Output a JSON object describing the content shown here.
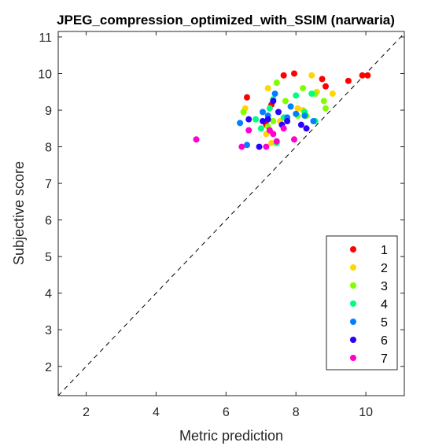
{
  "chart_data": {
    "type": "scatter",
    "title": "JPEG_compression_optimized_with_SSIM (narwaria)",
    "xlabel": "Metric prediction",
    "ylabel": "Subjective score",
    "xlim": [
      1.2,
      11.1
    ],
    "ylim": [
      1.2,
      11.15
    ],
    "xticks": [
      2,
      4,
      6,
      8,
      10
    ],
    "yticks": [
      2,
      3,
      4,
      5,
      6,
      7,
      8,
      9,
      10,
      11
    ],
    "grid": false,
    "legend_position": "bottom-right",
    "reference_line": "dashed diagonal y = x",
    "series": [
      {
        "name": "1",
        "color": "#ff0000",
        "points": [
          [
            6.6,
            9.35
          ],
          [
            7.3,
            9.15
          ],
          [
            7.65,
            9.95
          ],
          [
            7.95,
            10.0
          ],
          [
            8.75,
            9.85
          ],
          [
            8.85,
            9.65
          ],
          [
            9.5,
            9.8
          ],
          [
            9.9,
            9.95
          ],
          [
            10.05,
            9.95
          ],
          [
            7.15,
            8.6
          ]
        ]
      },
      {
        "name": "2",
        "color": "#ffd700",
        "points": [
          [
            6.55,
            9.05
          ],
          [
            7.2,
            9.6
          ],
          [
            7.45,
            9.75
          ],
          [
            8.45,
            9.95
          ],
          [
            8.6,
            9.5
          ],
          [
            9.05,
            9.45
          ],
          [
            7.15,
            8.35
          ],
          [
            7.3,
            8.1
          ],
          [
            8.05,
            9.05
          ],
          [
            8.2,
            9.0
          ],
          [
            7.55,
            8.7
          ]
        ]
      },
      {
        "name": "3",
        "color": "#80ff00",
        "points": [
          [
            6.5,
            8.95
          ],
          [
            7.2,
            8.55
          ],
          [
            7.45,
            9.75
          ],
          [
            7.7,
            9.25
          ],
          [
            8.2,
            9.6
          ],
          [
            8.55,
            9.45
          ],
          [
            8.8,
            9.25
          ],
          [
            8.85,
            9.05
          ],
          [
            7.35,
            8.7
          ],
          [
            8.05,
            8.85
          ],
          [
            8.3,
            8.85
          ]
        ]
      },
      {
        "name": "4",
        "color": "#00ff80",
        "points": [
          [
            6.85,
            8.75
          ],
          [
            7.25,
            9.05
          ],
          [
            7.35,
            9.3
          ],
          [
            7.65,
            8.8
          ],
          [
            8.0,
            9.4
          ],
          [
            8.25,
            8.95
          ],
          [
            8.45,
            9.45
          ],
          [
            8.55,
            8.7
          ],
          [
            7.0,
            8.5
          ],
          [
            7.45,
            8.1
          ]
        ]
      },
      {
        "name": "5",
        "color": "#0080ff",
        "points": [
          [
            6.4,
            8.65
          ],
          [
            6.6,
            8.05
          ],
          [
            7.05,
            8.95
          ],
          [
            7.4,
            9.45
          ],
          [
            7.75,
            8.8
          ],
          [
            7.85,
            9.1
          ],
          [
            8.0,
            8.9
          ],
          [
            8.25,
            8.85
          ],
          [
            8.5,
            8.7
          ],
          [
            7.2,
            8.85
          ]
        ]
      },
      {
        "name": "6",
        "color": "#2a00ff",
        "points": [
          [
            6.65,
            8.75
          ],
          [
            6.95,
            8.0
          ],
          [
            7.05,
            8.7
          ],
          [
            7.2,
            8.75
          ],
          [
            7.35,
            9.25
          ],
          [
            7.6,
            8.6
          ],
          [
            7.75,
            8.7
          ],
          [
            8.15,
            8.6
          ],
          [
            8.3,
            8.5
          ],
          [
            7.5,
            8.95
          ]
        ]
      },
      {
        "name": "7",
        "color": "#ff00cc",
        "points": [
          [
            5.15,
            8.2
          ],
          [
            6.45,
            8.0
          ],
          [
            6.65,
            8.45
          ],
          [
            7.15,
            8.0
          ],
          [
            7.25,
            8.45
          ],
          [
            7.35,
            8.35
          ],
          [
            7.45,
            8.15
          ],
          [
            7.65,
            8.5
          ],
          [
            7.95,
            8.2
          ]
        ]
      }
    ]
  }
}
